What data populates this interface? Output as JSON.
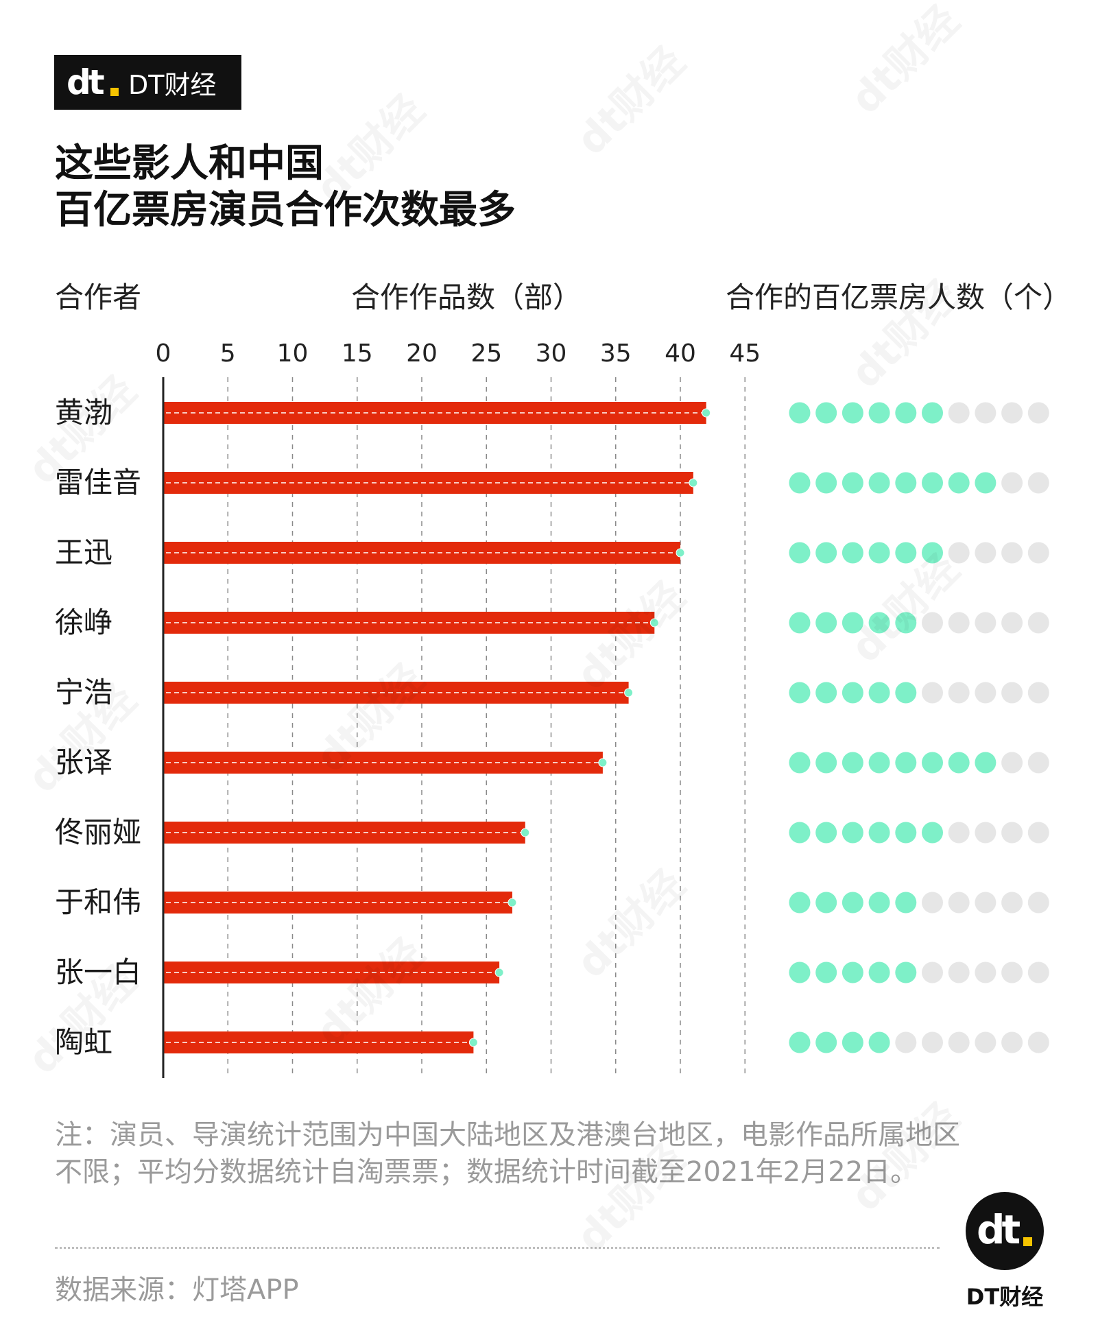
{
  "brand": {
    "logo_mark": "dt",
    "name": "DT财经",
    "badge_mark": "dt",
    "badge_name": "DT财经"
  },
  "title": {
    "line1": "这些影人和中国",
    "line2": "百亿票房演员合作次数最多"
  },
  "headers": {
    "collaborator": "合作者",
    "works": "合作作品数（部）",
    "actors": "合作的百亿票房人数（个）"
  },
  "colors": {
    "bar": "#e32a0b",
    "dot_on": "#7ef0c8",
    "dot_off": "#e6e6e6",
    "axis": "#222222",
    "grid": "#8a8a8a"
  },
  "chart_data": {
    "type": "bar",
    "orientation": "horizontal",
    "categories": [
      "黄渤",
      "雷佳音",
      "王迅",
      "徐峥",
      "宁浩",
      "张译",
      "佟丽娅",
      "于和伟",
      "张一白",
      "陶虹"
    ],
    "series": [
      {
        "name": "合作作品数（部）",
        "values": [
          42,
          41,
          40,
          38,
          36,
          34,
          28,
          27,
          26,
          24
        ]
      },
      {
        "name": "合作的百亿票房人数（个）",
        "values": [
          6,
          8,
          6,
          5,
          5,
          8,
          6,
          5,
          5,
          4
        ],
        "max": 10
      }
    ],
    "xlim": [
      0,
      45
    ],
    "xticks": [
      0,
      5,
      10,
      15,
      20,
      25,
      30,
      35,
      40,
      45
    ],
    "grid": true
  },
  "note": "注：演员、导演统计范围为中国大陆地区及港澳台地区，电影作品所属地区不限；平均分数据统计自淘票票；数据统计时间截至2021年2月22日。",
  "source": "数据来源：灯塔APP",
  "watermark": "dt财经"
}
